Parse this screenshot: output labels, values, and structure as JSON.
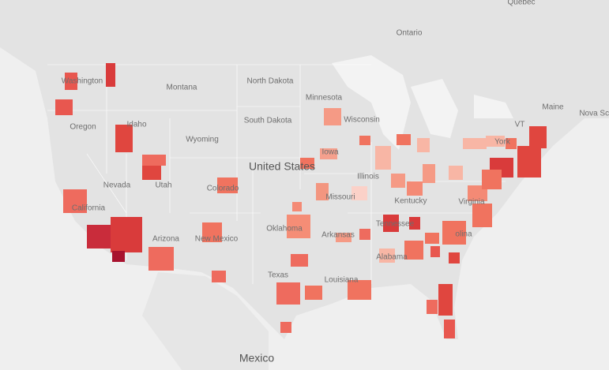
{
  "map": {
    "labels": [
      "Québec",
      "Ontario",
      "Washington",
      "Montana",
      "North Dakota",
      "Minnesota",
      "South Dakota",
      "Wisconsin",
      "Oregon",
      "Idaho",
      "Wyoming",
      "Maine",
      "VT",
      "Nova Sco",
      "Iowa",
      "United States",
      "Nevada",
      "Utah",
      "Colorado",
      "Illinois",
      "Missouri",
      "Kentucky",
      "California",
      "Arizona",
      "New Mexico",
      "Oklahoma",
      "Arkansas",
      "Tennessee",
      "Alabama",
      "Texas",
      "Louisiana",
      "Mexico",
      "York",
      "Virginia",
      "olina"
    ]
  }
}
